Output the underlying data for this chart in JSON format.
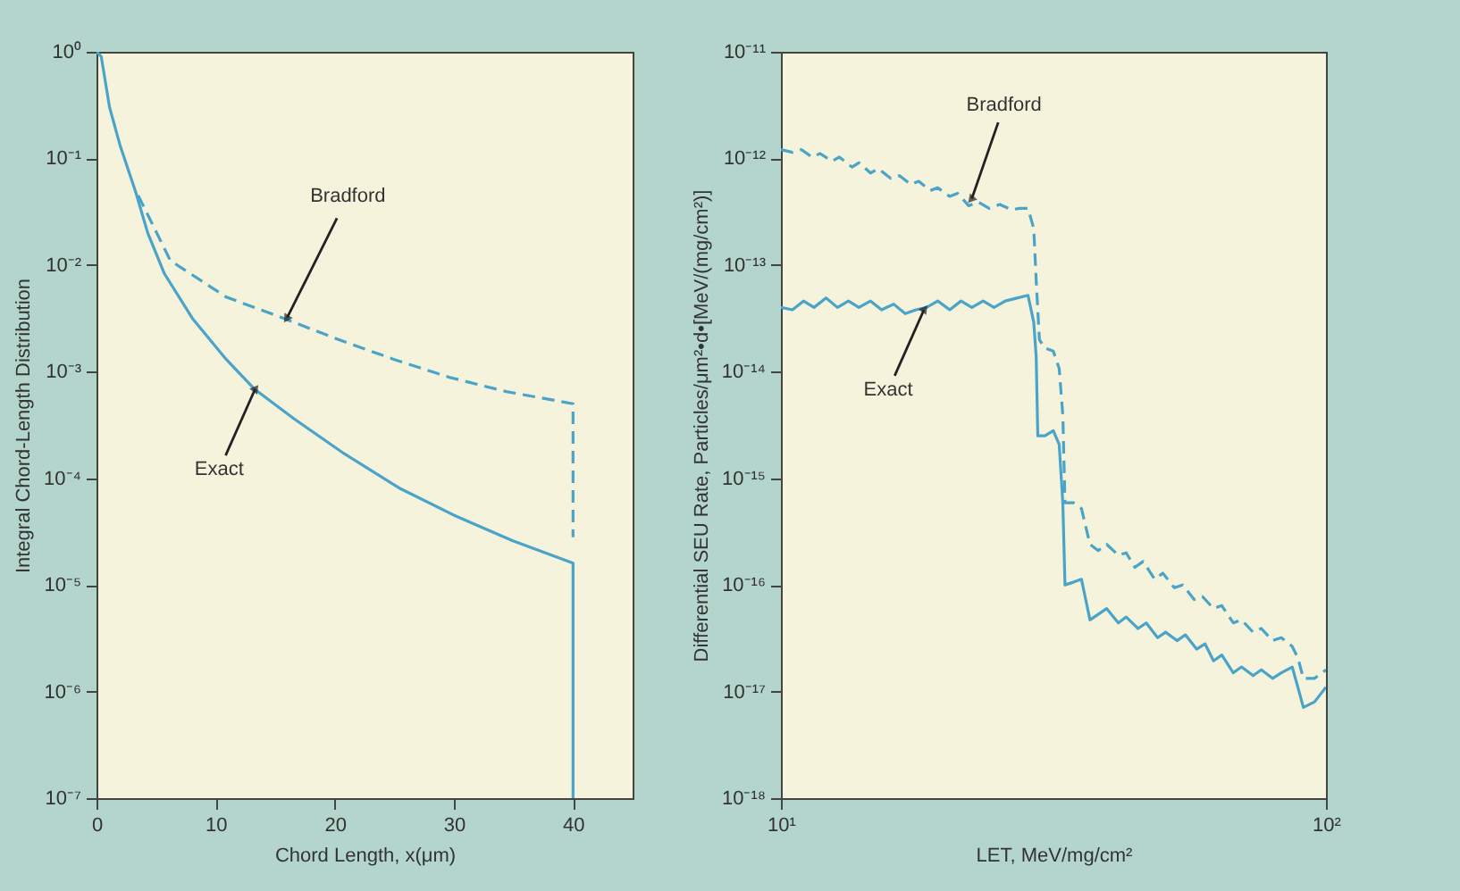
{
  "chart_data": [
    {
      "type": "line",
      "xlabel": "Chord Length, x(μm)",
      "ylabel": "Integral Chord-Length Distribution",
      "log": "y",
      "xlim": [
        0,
        45
      ],
      "xticks": [
        0,
        10,
        20,
        30,
        40
      ],
      "ylim": [
        1e-07,
        1
      ],
      "yticks": [
        {
          "value": 1,
          "label": "10⁰"
        },
        {
          "value": 0.1,
          "label": "10⁻¹"
        },
        {
          "value": 0.01,
          "label": "10⁻²"
        },
        {
          "value": 0.001,
          "label": "10⁻³"
        },
        {
          "value": 0.0001,
          "label": "10⁻⁴"
        },
        {
          "value": 1e-05,
          "label": "10⁻⁵"
        },
        {
          "value": 1e-06,
          "label": "10⁻⁶"
        },
        {
          "value": 1e-07,
          "label": "10⁻⁷"
        }
      ],
      "series": [
        {
          "color": "#4aa3c8",
          "line_style": "solid",
          "x": [
            0,
            0.4,
            1.1,
            2.0,
            3.3,
            4.3,
            5.7,
            8.1,
            10.9,
            13.3,
            16.6,
            20.8,
            25.5,
            30.2,
            34.9,
            40,
            40
          ],
          "values": [
            1,
            0.9,
            0.3,
            0.13,
            0.048,
            0.02,
            0.0083,
            0.0031,
            0.0013,
            0.00068,
            0.00036,
            0.00017,
            8e-05,
            4.4e-05,
            2.6e-05,
            1.6e-05,
            1e-07
          ]
        },
        {
          "color": "#4aa3c8",
          "line_style": "dashed",
          "x": [
            3.5,
            6.2,
            10.9,
            15.6,
            20.3,
            25.0,
            29.7,
            34.4,
            40,
            40
          ],
          "values": [
            0.045,
            0.011,
            0.005,
            0.0032,
            0.002,
            0.0013,
            0.00088,
            0.00065,
            0.0005,
            2.8e-05
          ]
        }
      ],
      "annotations": [
        {
          "text": "Bradford",
          "x": 16.0,
          "y": 0.0032
        },
        {
          "text": "Exact",
          "x": 13.3,
          "y": 0.00068
        }
      ]
    },
    {
      "type": "line",
      "xlabel": "LET, MeV/mg/cm²",
      "ylabel": "Differential SEU Rate, Particles/μm²•d•[MeV/(mg/cm²)]",
      "log": "xy",
      "xlim": [
        10,
        100
      ],
      "xticks": [
        {
          "value": 10,
          "label": "10¹"
        },
        {
          "value": 100,
          "label": "10²"
        }
      ],
      "ylim": [
        1e-18,
        1e-11
      ],
      "yticks": [
        {
          "value": 1e-11,
          "label": "10⁻¹¹"
        },
        {
          "value": 1e-12,
          "label": "10⁻¹²"
        },
        {
          "value": 1e-13,
          "label": "10⁻¹³"
        },
        {
          "value": 1e-14,
          "label": "10⁻¹⁴"
        },
        {
          "value": 1e-15,
          "label": "10⁻¹⁵"
        },
        {
          "value": 1e-16,
          "label": "10⁻¹⁶"
        },
        {
          "value": 1e-17,
          "label": "10⁻¹⁷"
        },
        {
          "value": 1e-18,
          "label": "10⁻¹⁸"
        }
      ],
      "series": [
        {
          "color": "#4aa3c8",
          "line_style": "dashed",
          "x": [
            10,
            10.5,
            10.9,
            11.4,
            11.8,
            12.4,
            12.8,
            13.5,
            13.9,
            14.6,
            15.1,
            15.9,
            16.5,
            17.3,
            17.9,
            18.8,
            19.4,
            20.4,
            21.1,
            22.1,
            23.0,
            24.1,
            25.2,
            26.5,
            27.4,
            28.4,
            29.1,
            29.4,
            29.8,
            30.5,
            31.6,
            32.4,
            32.9,
            33.2,
            34.4,
            35.6,
            36.9,
            38.2,
            39.6,
            41.6,
            43.0,
            44.6,
            46.2,
            48.5,
            50.2,
            52.7,
            54.6,
            57.3,
            59.3,
            62.2,
            64.4,
            67.6,
            70.0,
            73.5,
            76.1,
            79.8,
            82.8,
            86.7,
            88.8,
            90.9,
            95.3,
            100
          ],
          "values": [
            1.21e-12,
            1.14e-12,
            1.21e-12,
            1.03e-12,
            1.11e-12,
            9.4e-13,
            1.03e-12,
            8.3e-13,
            9.1e-13,
            7.3e-13,
            8e-13,
            6.5e-13,
            6.9e-13,
            5.7e-13,
            6.1e-13,
            5e-13,
            5.3e-13,
            4.4e-13,
            4.7e-13,
            3.6e-13,
            3.9e-13,
            3.4e-13,
            3.7e-13,
            3.3e-13,
            3.4e-13,
            3.4e-13,
            2.2e-13,
            7.1e-14,
            2e-14,
            1.66e-14,
            1.56e-14,
            1.07e-14,
            3.9e-15,
            5.9e-16,
            5.9e-16,
            5.2e-16,
            2.4e-16,
            2.1e-16,
            2.4e-16,
            1.9e-16,
            2e-16,
            1.46e-16,
            1.66e-16,
            1.13e-16,
            1.29e-16,
            9.4e-17,
            1e-16,
            7.3e-17,
            7.8e-17,
            6e-17,
            6.4e-17,
            4.4e-17,
            4.7e-17,
            3.6e-17,
            3.9e-17,
            3e-17,
            3.2e-17,
            2.65e-17,
            2.07e-17,
            1.33e-17,
            1.33e-17,
            1.6e-17
          ]
        },
        {
          "color": "#4aa3c8",
          "line_style": "solid",
          "x": [
            10,
            10.5,
            11.0,
            11.5,
            12.1,
            12.7,
            13.3,
            13.9,
            14.6,
            15.3,
            16.1,
            16.9,
            17.7,
            18.5,
            19.4,
            20.4,
            21.4,
            22.4,
            23.5,
            24.6,
            25.8,
            27.1,
            28.4,
            29.1,
            29.4,
            29.6,
            30.5,
            31.6,
            32.4,
            32.9,
            33.2,
            34.4,
            35.6,
            36.9,
            38.2,
            39.6,
            41.6,
            43.0,
            45.2,
            46.8,
            49.1,
            50.8,
            53.3,
            55.2,
            57.9,
            60.0,
            62.2,
            64.4,
            67.6,
            70.0,
            73.5,
            76.1,
            79.8,
            82.8,
            86.7,
            88.8,
            90.9,
            95.3,
            100
          ],
          "values": [
            4e-14,
            3.8e-14,
            4.6e-14,
            4e-14,
            4.9e-14,
            4e-14,
            4.6e-14,
            4e-14,
            4.6e-14,
            3.8e-14,
            4.3e-14,
            3.5e-14,
            3.8e-14,
            4e-14,
            4.6e-14,
            3.8e-14,
            4.6e-14,
            4e-14,
            4.6e-14,
            4e-14,
            4.6e-14,
            4.9e-14,
            5.2e-14,
            2.9e-14,
            1.37e-14,
            2.5e-15,
            2.5e-15,
            2.8e-15,
            2.07e-15,
            5.9e-16,
            1e-16,
            1.06e-16,
            1.13e-16,
            4.7e-17,
            5.3e-17,
            6e-17,
            4.4e-17,
            5e-17,
            3.9e-17,
            4.4e-17,
            3.2e-17,
            3.6e-17,
            3e-17,
            3.4e-17,
            2.5e-17,
            2.8e-17,
            1.94e-17,
            2.2e-17,
            1.5e-17,
            1.7e-17,
            1.41e-17,
            1.6e-17,
            1.33e-17,
            1.5e-17,
            1.7e-17,
            1.1e-17,
            7.1e-18,
            8e-18,
            1.1e-17
          ]
        }
      ],
      "annotations": [
        {
          "text": "Bradford",
          "x": 22.4,
          "y": 4.2e-13
        },
        {
          "text": "Exact",
          "x": 18.3,
          "y": 3.8e-14
        }
      ]
    }
  ]
}
